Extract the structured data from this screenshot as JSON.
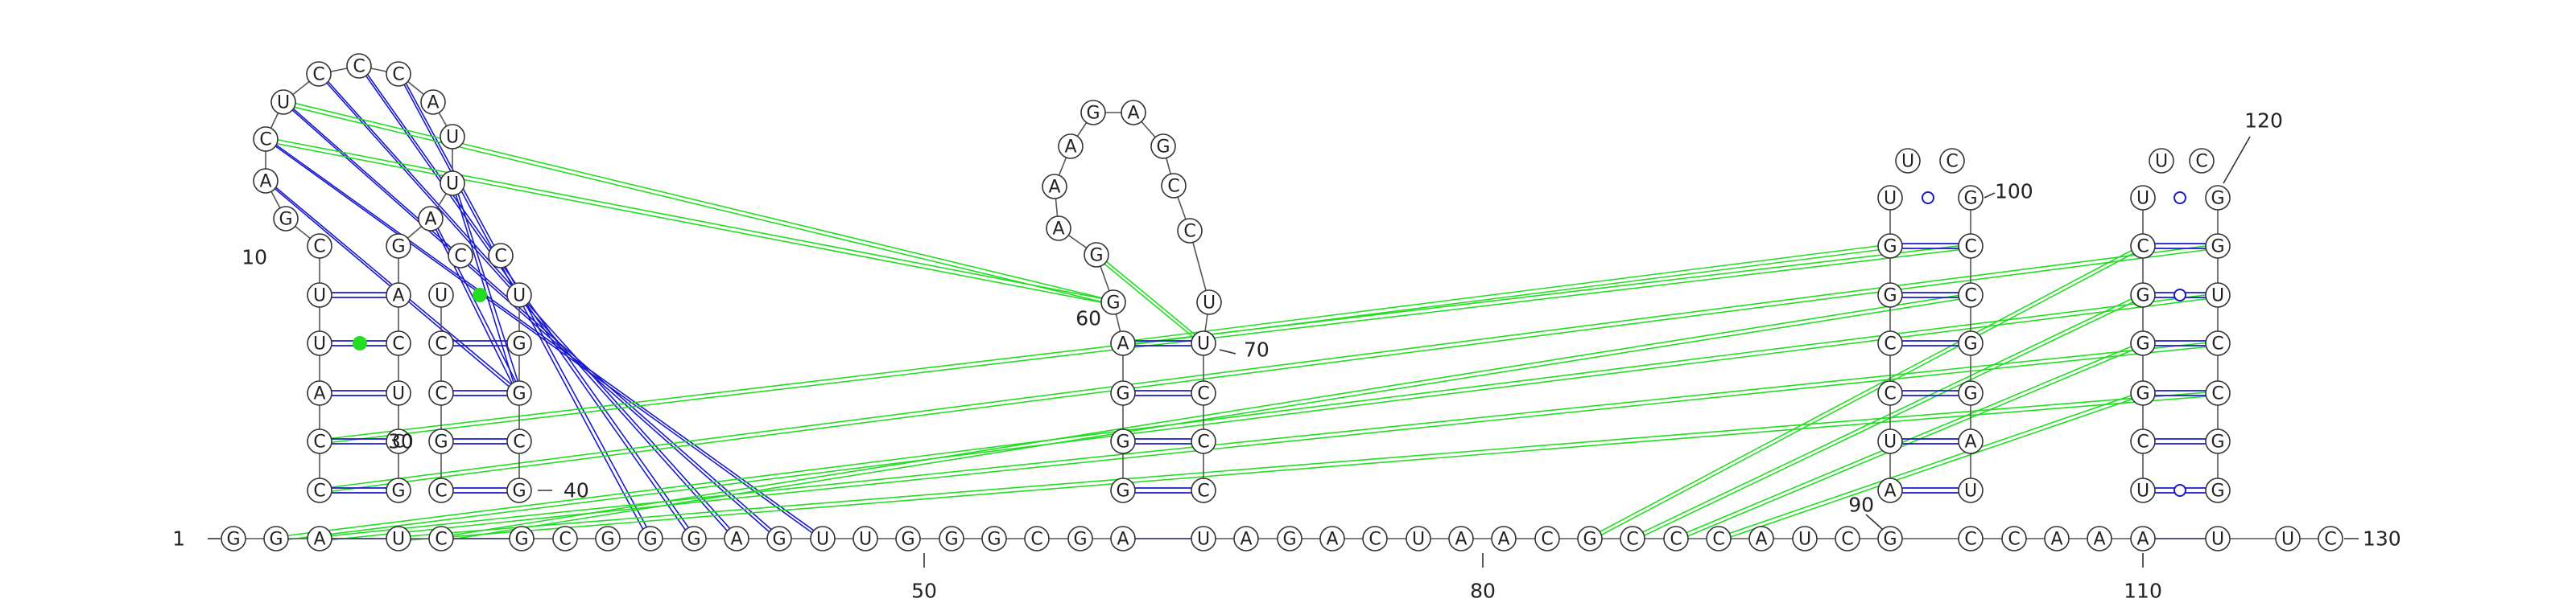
{
  "colors": {
    "background": "#ffffff",
    "nucleotide_stroke": "#333333",
    "backbone": "#555555",
    "canonical_pair": "#1a1acc",
    "noncanonical_pair": "#1a1acc",
    "wobble_marker": "#ffffff",
    "tertiary_link": "#22dd22",
    "long_range_link": "#1a1acc"
  },
  "sequence": "GGAUCGCGGGAGUUGGGCGAUAGACUAACGCCCAUCGCCAAAUUC",
  "numbers": [
    {
      "label": "1",
      "pos": 1
    },
    {
      "label": "10",
      "pos": 10
    },
    {
      "label": "30",
      "pos": 30
    },
    {
      "label": "40",
      "pos": 40
    },
    {
      "label": "50",
      "pos": 50
    },
    {
      "label": "60",
      "pos": 60
    },
    {
      "label": "70",
      "pos": 70
    },
    {
      "label": "80",
      "pos": 80
    },
    {
      "label": "90",
      "pos": 90
    },
    {
      "label": "100",
      "pos": 100
    },
    {
      "label": "110",
      "pos": 110
    },
    {
      "label": "120",
      "pos": 120
    },
    {
      "label": "130",
      "pos": 130
    }
  ],
  "base_pairs": [
    {
      "i": "C",
      "j": "G",
      "type": "canonical"
    },
    {
      "i": "U",
      "j": "A",
      "type": "canonical"
    },
    {
      "i": "U",
      "j": "C",
      "type": "noncanonical-green-dot"
    },
    {
      "i": "A",
      "j": "U",
      "type": "canonical"
    },
    {
      "i": "C",
      "j": "C",
      "type": "canonical"
    },
    {
      "i": "C",
      "j": "G",
      "type": "canonical"
    },
    {
      "i": "U",
      "j": "G",
      "type": "wobble"
    },
    {
      "i": "G",
      "j": "U",
      "type": "wobble"
    }
  ]
}
